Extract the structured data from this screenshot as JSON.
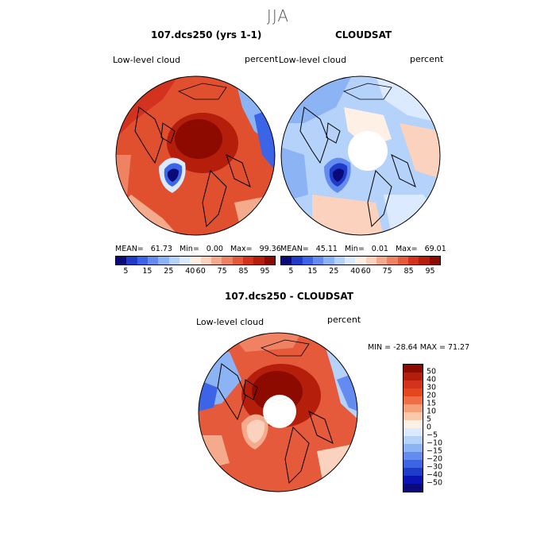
{
  "season": "JJA",
  "panels": {
    "model": {
      "title": "107.dcs250 (yrs 1-1)",
      "variable": "Low-level cloud",
      "units": "percent",
      "stats": {
        "mean_label": "MEAN=",
        "mean": "61.73",
        "min_label": "Min=",
        "min": "0.00",
        "max_label": "Max=",
        "max": "99.36"
      }
    },
    "obs": {
      "title": "CLOUDSAT",
      "variable": "Low-level cloud",
      "units": "percent",
      "stats": {
        "mean_label": "MEAN=",
        "mean": "45.11",
        "min_label": "Min=",
        "min": "0.01",
        "max_label": "Max=",
        "max": "69.01"
      }
    },
    "diff": {
      "title": "107.dcs250 - CLOUDSAT",
      "variable": "Low-level cloud",
      "units": "percent",
      "minmax": "MIN = -28.64  MAX =  71.27"
    }
  },
  "colorbar_abs": {
    "colors": [
      "#0a0a78",
      "#1e3cc8",
      "#3c64e6",
      "#648cf0",
      "#8cb4f5",
      "#b4d2fa",
      "#dceaff",
      "#fff0e6",
      "#fad2be",
      "#f5aa8c",
      "#f08264",
      "#e65a3c",
      "#d2321e",
      "#b41e0a",
      "#8c0a00"
    ],
    "tick_labels": [
      "5",
      "15",
      "25",
      "40",
      "60",
      "75",
      "85",
      "95"
    ]
  },
  "colorbar_diff": {
    "colors": [
      "#8c0a00",
      "#b41e0a",
      "#d2321e",
      "#e6461e",
      "#f06e46",
      "#f5a078",
      "#fac8aa",
      "#fdf0e6",
      "#dceaff",
      "#b4d2fa",
      "#8cb4f5",
      "#648cf0",
      "#3c64e6",
      "#1e3cc8",
      "#0a14b4",
      "#0a0a78"
    ],
    "tick_labels": [
      "50",
      "40",
      "30",
      "20",
      "15",
      "10",
      "5",
      "0",
      "−5",
      "−10",
      "−15",
      "−20",
      "−30",
      "−40",
      "−50"
    ]
  }
}
